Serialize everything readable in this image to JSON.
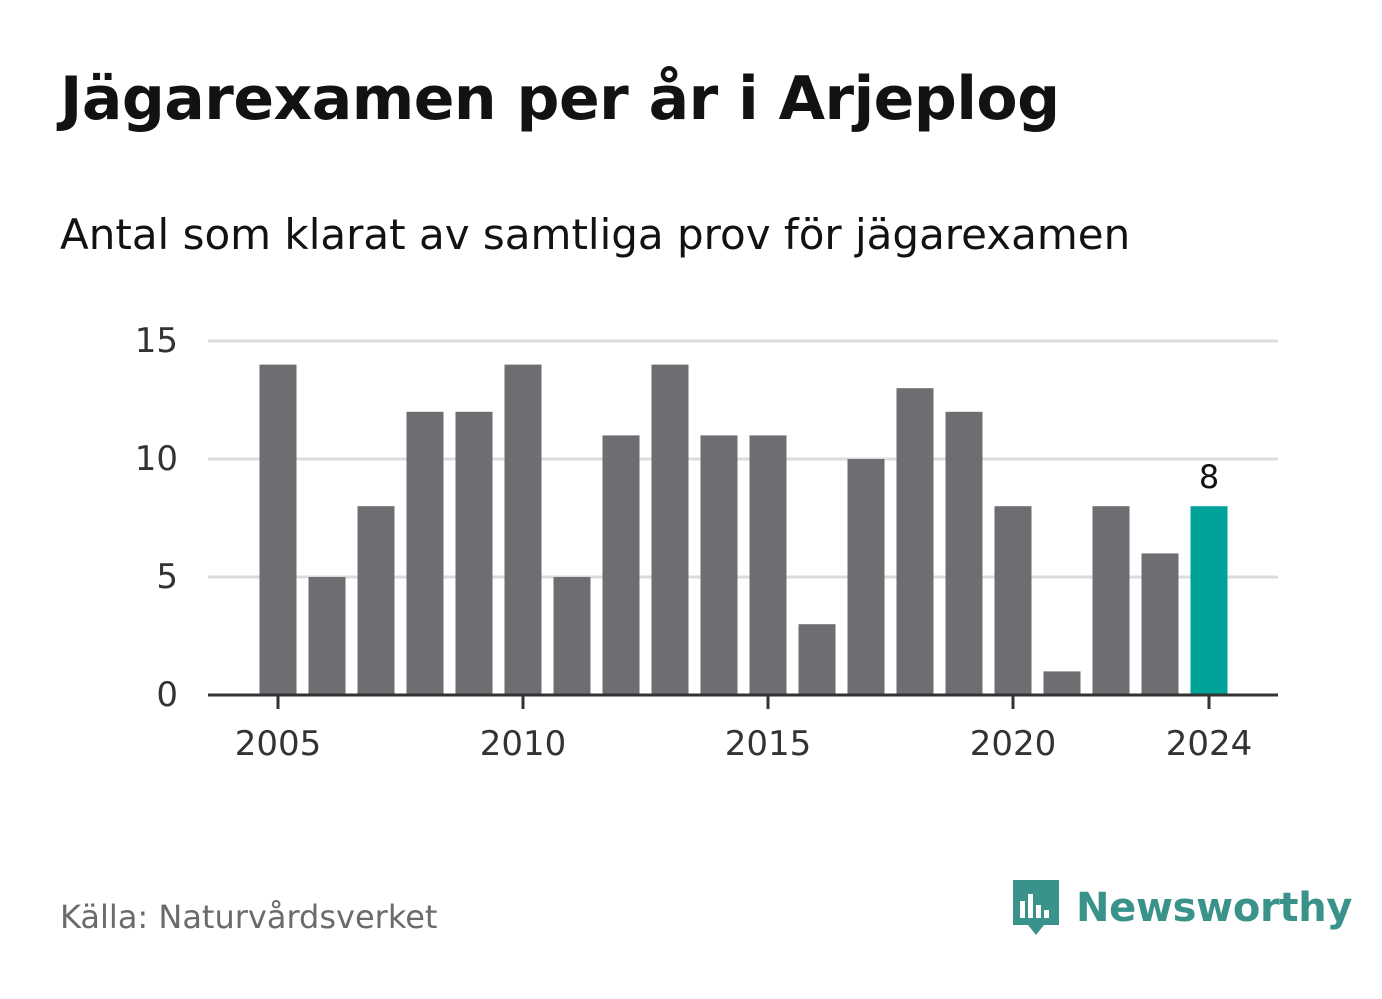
{
  "header": {
    "title": "Jägarexamen per år i Arjeplog",
    "subtitle": "Antal som klarat av samtliga prov för jägarexamen"
  },
  "footer": {
    "source": "Källa: Naturvårdsverket",
    "brand": "Newsworthy",
    "brand_icon": "newsworthy-logo-icon"
  },
  "colors": {
    "bar": "#6e6d72",
    "highlight": "#00a39a",
    "grid": "#dcdcdc",
    "axis": "#333333",
    "brand": "#3a938b"
  },
  "chart_data": {
    "type": "bar",
    "title": "Jägarexamen per år i Arjeplog",
    "subtitle": "Antal som klarat av samtliga prov för jägarexamen",
    "xlabel": "",
    "ylabel": "",
    "categories": [
      2005,
      2006,
      2007,
      2008,
      2009,
      2010,
      2011,
      2012,
      2013,
      2014,
      2015,
      2016,
      2017,
      2018,
      2019,
      2020,
      2021,
      2022,
      2023,
      2024
    ],
    "values": [
      14,
      5,
      8,
      12,
      12,
      14,
      5,
      11,
      14,
      11,
      11,
      3,
      10,
      13,
      12,
      8,
      1,
      8,
      6,
      8
    ],
    "highlight_category": 2024,
    "highlight_label": "8",
    "ylim": [
      0,
      15
    ],
    "yticks": [
      0,
      5,
      10,
      15
    ],
    "xticks": [
      2005,
      2010,
      2015,
      2020,
      2024
    ],
    "grid": true,
    "legend": "none"
  }
}
